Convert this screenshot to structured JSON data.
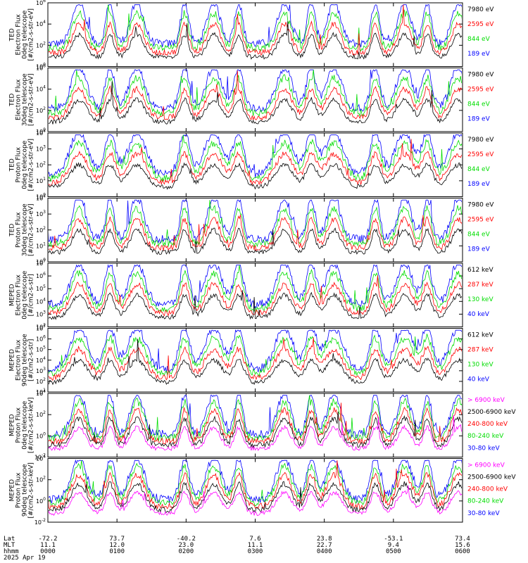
{
  "chart_data": [
    {
      "type": "line",
      "ylabel": [
        "TED",
        "Electron Flux",
        "0deg telescope",
        "[#/cm2-s-str-eV]"
      ],
      "ylog": true,
      "ylim": [
        1,
        1000000
      ],
      "yticks": [
        [
          "10",
          "0"
        ],
        [
          "10",
          "2"
        ],
        [
          "10",
          "4"
        ],
        [
          "10",
          "6"
        ]
      ],
      "series": [
        {
          "name": "7980 eV",
          "color": "#000000"
        },
        {
          "name": "2595 eV",
          "color": "#ff0000"
        },
        {
          "name": "844 eV",
          "color": "#00dd00"
        },
        {
          "name": "189 eV",
          "color": "#0000ff"
        }
      ]
    },
    {
      "type": "line",
      "ylabel": [
        "TED",
        "Electron Flux",
        "30deg telescope",
        "[#/cm2-s-str-eV]"
      ],
      "ylog": true,
      "ylim": [
        1,
        1000000
      ],
      "yticks": [
        [
          "10",
          "0"
        ],
        [
          "10",
          "2"
        ],
        [
          "10",
          "4"
        ],
        [
          "10",
          "6"
        ]
      ],
      "series": [
        {
          "name": "7980 eV",
          "color": "#000000"
        },
        {
          "name": "2595 eV",
          "color": "#ff0000"
        },
        {
          "name": "844 eV",
          "color": "#00dd00"
        },
        {
          "name": "189 eV",
          "color": "#0000ff"
        }
      ]
    },
    {
      "type": "line",
      "ylabel": [
        "TED",
        "Proton Flux",
        "0deg telescope",
        "[#/cm2-s-str-eV]"
      ],
      "ylog": true,
      "ylim": [
        1,
        10000
      ],
      "yticks": [
        [
          "10",
          "0"
        ],
        [
          "10",
          "1"
        ],
        [
          "10",
          "2"
        ],
        [
          "10",
          "3"
        ],
        [
          "10",
          "4"
        ]
      ],
      "series": [
        {
          "name": "7980 eV",
          "color": "#000000"
        },
        {
          "name": "2595 eV",
          "color": "#ff0000"
        },
        {
          "name": "844 eV",
          "color": "#00dd00"
        },
        {
          "name": "189 eV",
          "color": "#0000ff"
        }
      ]
    },
    {
      "type": "line",
      "ylabel": [
        "TED",
        "Proton Flux",
        "30deg telescope",
        "[#/cm2-s-str-eV]"
      ],
      "ylog": true,
      "ylim": [
        1,
        10000
      ],
      "yticks": [
        [
          "10",
          "0"
        ],
        [
          "10",
          "1"
        ],
        [
          "10",
          "2"
        ],
        [
          "10",
          "3"
        ],
        [
          "10",
          "4"
        ]
      ],
      "series": [
        {
          "name": "7980 eV",
          "color": "#000000"
        },
        {
          "name": "2595 eV",
          "color": "#ff0000"
        },
        {
          "name": "844 eV",
          "color": "#00dd00"
        },
        {
          "name": "189 eV",
          "color": "#0000ff"
        }
      ]
    },
    {
      "type": "line",
      "ylabel": [
        "MEPED",
        "Electron Flux",
        "0deg telescope",
        "[#/cm2-s-str]"
      ],
      "ylog": true,
      "ylim": [
        100,
        10000000
      ],
      "yticks": [
        [
          "10",
          "2"
        ],
        [
          "10",
          "3"
        ],
        [
          "10",
          "4"
        ],
        [
          "10",
          "5"
        ],
        [
          "10",
          "6"
        ],
        [
          "10",
          "7"
        ]
      ],
      "series": [
        {
          "name": "612 keV",
          "color": "#000000"
        },
        {
          "name": "287 keV",
          "color": "#ff0000"
        },
        {
          "name": "130 keV",
          "color": "#00dd00"
        },
        {
          "name": "40 keV",
          "color": "#0000ff"
        }
      ]
    },
    {
      "type": "line",
      "ylabel": [
        "MEPED",
        "Electron Flux",
        "90deg telescope",
        "[#/cm2-s-str]"
      ],
      "ylog": true,
      "ylim": [
        10,
        10000000
      ],
      "yticks": [
        [
          "10",
          "1"
        ],
        [
          "10",
          "2"
        ],
        [
          "10",
          "3"
        ],
        [
          "10",
          "4"
        ],
        [
          "10",
          "5"
        ],
        [
          "10",
          "6"
        ],
        [
          "10",
          "7"
        ]
      ],
      "series": [
        {
          "name": "612 keV",
          "color": "#000000"
        },
        {
          "name": "287 keV",
          "color": "#ff0000"
        },
        {
          "name": "130 keV",
          "color": "#00dd00"
        },
        {
          "name": "40 keV",
          "color": "#0000ff"
        }
      ]
    },
    {
      "type": "line",
      "ylabel": [
        "MEPED",
        "Proton Flux",
        "0deg telescope",
        "[#/cm2-s-str-keV]"
      ],
      "ylog": true,
      "ylim": [
        0.01,
        100000
      ],
      "yticks": [
        [
          "10",
          "-2"
        ],
        [
          "10",
          "0"
        ],
        [
          "10",
          "2"
        ],
        [
          "10",
          "4"
        ]
      ],
      "series": [
        {
          "name": "> 6900 keV",
          "color": "#ff00ff"
        },
        {
          "name": "2500-6900 keV",
          "color": "#000000"
        },
        {
          "name": "240-800 keV",
          "color": "#ff0000"
        },
        {
          "name": "80-240 keV",
          "color": "#00dd00"
        },
        {
          "name": "30-80 keV",
          "color": "#0000ff"
        }
      ]
    },
    {
      "type": "line",
      "ylabel": [
        "MEPED",
        "Proton Flux",
        "90deg telescope",
        "[#/cm2-s-str-keV]"
      ],
      "ylog": true,
      "ylim": [
        0.01,
        100000
      ],
      "yticks": [
        [
          "10",
          "-2"
        ],
        [
          "10",
          "0"
        ],
        [
          "10",
          "2"
        ],
        [
          "10",
          "4"
        ]
      ],
      "series": [
        {
          "name": "> 6900 keV",
          "color": "#ff00ff"
        },
        {
          "name": "2500-6900 keV",
          "color": "#000000"
        },
        {
          "name": "240-800 keV",
          "color": "#ff0000"
        },
        {
          "name": "80-240 keV",
          "color": "#00dd00"
        },
        {
          "name": "30-80 keV",
          "color": "#0000ff"
        }
      ]
    }
  ],
  "x_axis": {
    "row_labels": [
      "Lat",
      "MLT",
      "hhmm"
    ],
    "date": "2025 Apr 19",
    "ticks": [
      {
        "lat": "-72.2",
        "mlt": "11.1",
        "hhmm": "0000"
      },
      {
        "lat": "73.7",
        "mlt": "12.0",
        "hhmm": "0100"
      },
      {
        "lat": "-40.2",
        "mlt": "23.0",
        "hhmm": "0200"
      },
      {
        "lat": "7.6",
        "mlt": "11.1",
        "hhmm": "0300"
      },
      {
        "lat": "23.8",
        "mlt": "22.7",
        "hhmm": "0400"
      },
      {
        "lat": "-53.1",
        "mlt": "9.4",
        "hhmm": "0500"
      },
      {
        "lat": "73.4",
        "mlt": "15.6",
        "hhmm": "0600"
      }
    ]
  }
}
